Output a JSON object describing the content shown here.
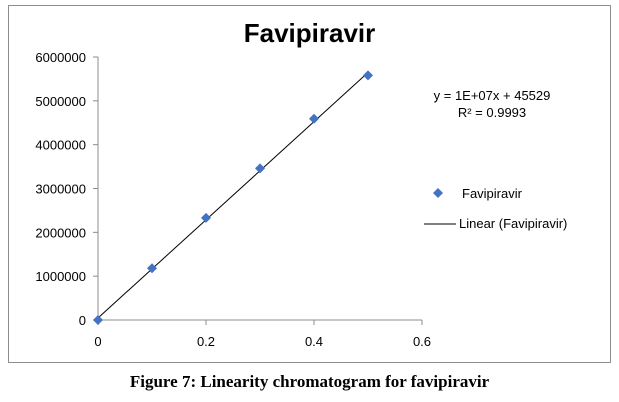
{
  "chart_data": {
    "type": "scatter",
    "title": "Favipiravir",
    "xlabel": "",
    "ylabel": "",
    "xlim": [
      0,
      0.6
    ],
    "ylim": [
      0,
      6000000
    ],
    "x_ticks": [
      "0",
      "0.2",
      "0.4",
      "0.6"
    ],
    "y_ticks": [
      "0",
      "1000000",
      "2000000",
      "3000000",
      "4000000",
      "5000000",
      "6000000"
    ],
    "grid": false,
    "legend_position": "right",
    "series": [
      {
        "name": "Favipiravir",
        "type": "scatter",
        "marker": "diamond",
        "color": "#4472c4",
        "x": [
          0,
          0.1,
          0.2,
          0.3,
          0.4,
          0.5
        ],
        "y": [
          0,
          1180000,
          2330000,
          3460000,
          4590000,
          5580000
        ]
      },
      {
        "name": "Linear (Favipiravir)",
        "type": "line",
        "color": "#000000",
        "x": [
          0,
          0.5
        ],
        "y": [
          45529,
          5645529
        ]
      }
    ],
    "annotations": {
      "equation": "y = 1E+07x + 45529",
      "r_squared": "R² = 0.9993"
    }
  },
  "caption": "Figure 7: Linearity chromatogram for favipiravir"
}
